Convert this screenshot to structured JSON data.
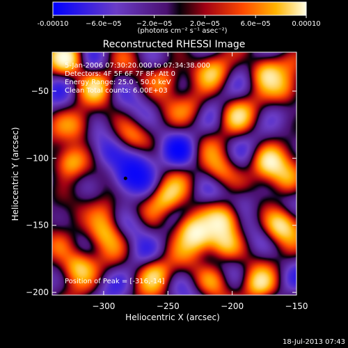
{
  "colorbar": {
    "ticks": [
      "-0.00010",
      "−6.0e−05",
      "−2.0e−05",
      "2.0e−05",
      "6.0e−05",
      "0.00010"
    ],
    "tick_values": [
      -0.0001,
      -6e-05,
      -2e-05,
      2e-05,
      6e-05,
      0.0001
    ],
    "units_label": "(photons cm⁻² s⁻¹ asec⁻²)"
  },
  "title": "Reconstructed RHESSI Image",
  "info_lines": [
    "5-Jan-2006 07:30:20.000 to 07:34:38.000",
    "Detectors: 4F 5F 6F 7F 8F, Att 0",
    "Energy Range: 25.0 - 50.0 keV",
    "Clean    Total counts: 6.00E+03"
  ],
  "peak_label": "Position of Peak = [-316,-14]",
  "footer_timestamp": "18-Jul-2013 07:43",
  "chart_data": {
    "type": "heatmap",
    "title": "Reconstructed RHESSI Image",
    "xlabel": "Heliocentric X (arcsec)",
    "ylabel": "Heliocentric Y (arcsec)",
    "xlim": [
      -340,
      -150
    ],
    "ylim": [
      -202,
      -21
    ],
    "x_ticks": [
      -300,
      -250,
      -200,
      -150
    ],
    "y_ticks": [
      -50,
      -100,
      -150,
      -200
    ],
    "x_tick_labels": [
      "−300",
      "−250",
      "−200",
      "−150"
    ],
    "y_tick_labels": [
      "−50",
      "−100",
      "−150",
      "−200"
    ],
    "color_range": [
      -0.0001,
      0.0001
    ],
    "marker": {
      "x": -283,
      "y": -115
    },
    "blobs": [
      {
        "x": -327,
        "y": -26,
        "v": 0.9
      },
      {
        "x": -305,
        "y": -45,
        "v": 0.6
      },
      {
        "x": -252,
        "y": -40,
        "v": 0.7
      },
      {
        "x": -215,
        "y": -35,
        "v": 0.6
      },
      {
        "x": -175,
        "y": -35,
        "v": 0.9
      },
      {
        "x": -158,
        "y": -50,
        "v": 0.6
      },
      {
        "x": -318,
        "y": -75,
        "v": 0.55
      },
      {
        "x": -230,
        "y": -62,
        "v": 0.45
      },
      {
        "x": -197,
        "y": -68,
        "v": 0.6
      },
      {
        "x": -327,
        "y": -103,
        "v": 0.95
      },
      {
        "x": -278,
        "y": -83,
        "v": 0.35
      },
      {
        "x": -210,
        "y": -110,
        "v": 0.7
      },
      {
        "x": -172,
        "y": -103,
        "v": 0.95
      },
      {
        "x": -158,
        "y": -115,
        "v": 0.6
      },
      {
        "x": -298,
        "y": -140,
        "v": 0.6
      },
      {
        "x": -300,
        "y": -155,
        "v": 0.7
      },
      {
        "x": -252,
        "y": -130,
        "v": 0.75
      },
      {
        "x": -235,
        "y": -150,
        "v": 0.85
      },
      {
        "x": -226,
        "y": -160,
        "v": 0.8
      },
      {
        "x": -205,
        "y": -145,
        "v": 0.75
      },
      {
        "x": -207,
        "y": -165,
        "v": 0.7
      },
      {
        "x": -163,
        "y": -150,
        "v": 1.0
      },
      {
        "x": -320,
        "y": -180,
        "v": 0.85
      },
      {
        "x": -335,
        "y": -165,
        "v": 0.45
      },
      {
        "x": -260,
        "y": -185,
        "v": 0.75
      },
      {
        "x": -215,
        "y": -190,
        "v": 0.5
      },
      {
        "x": -180,
        "y": -195,
        "v": 0.75
      },
      {
        "x": -272,
        "y": -100,
        "v": -0.55
      },
      {
        "x": -285,
        "y": -115,
        "v": -0.65
      },
      {
        "x": -275,
        "y": -150,
        "v": -0.5
      },
      {
        "x": -240,
        "y": -95,
        "v": -0.4
      },
      {
        "x": -300,
        "y": -98,
        "v": -0.35
      },
      {
        "x": -190,
        "y": -130,
        "v": -0.3
      }
    ]
  }
}
